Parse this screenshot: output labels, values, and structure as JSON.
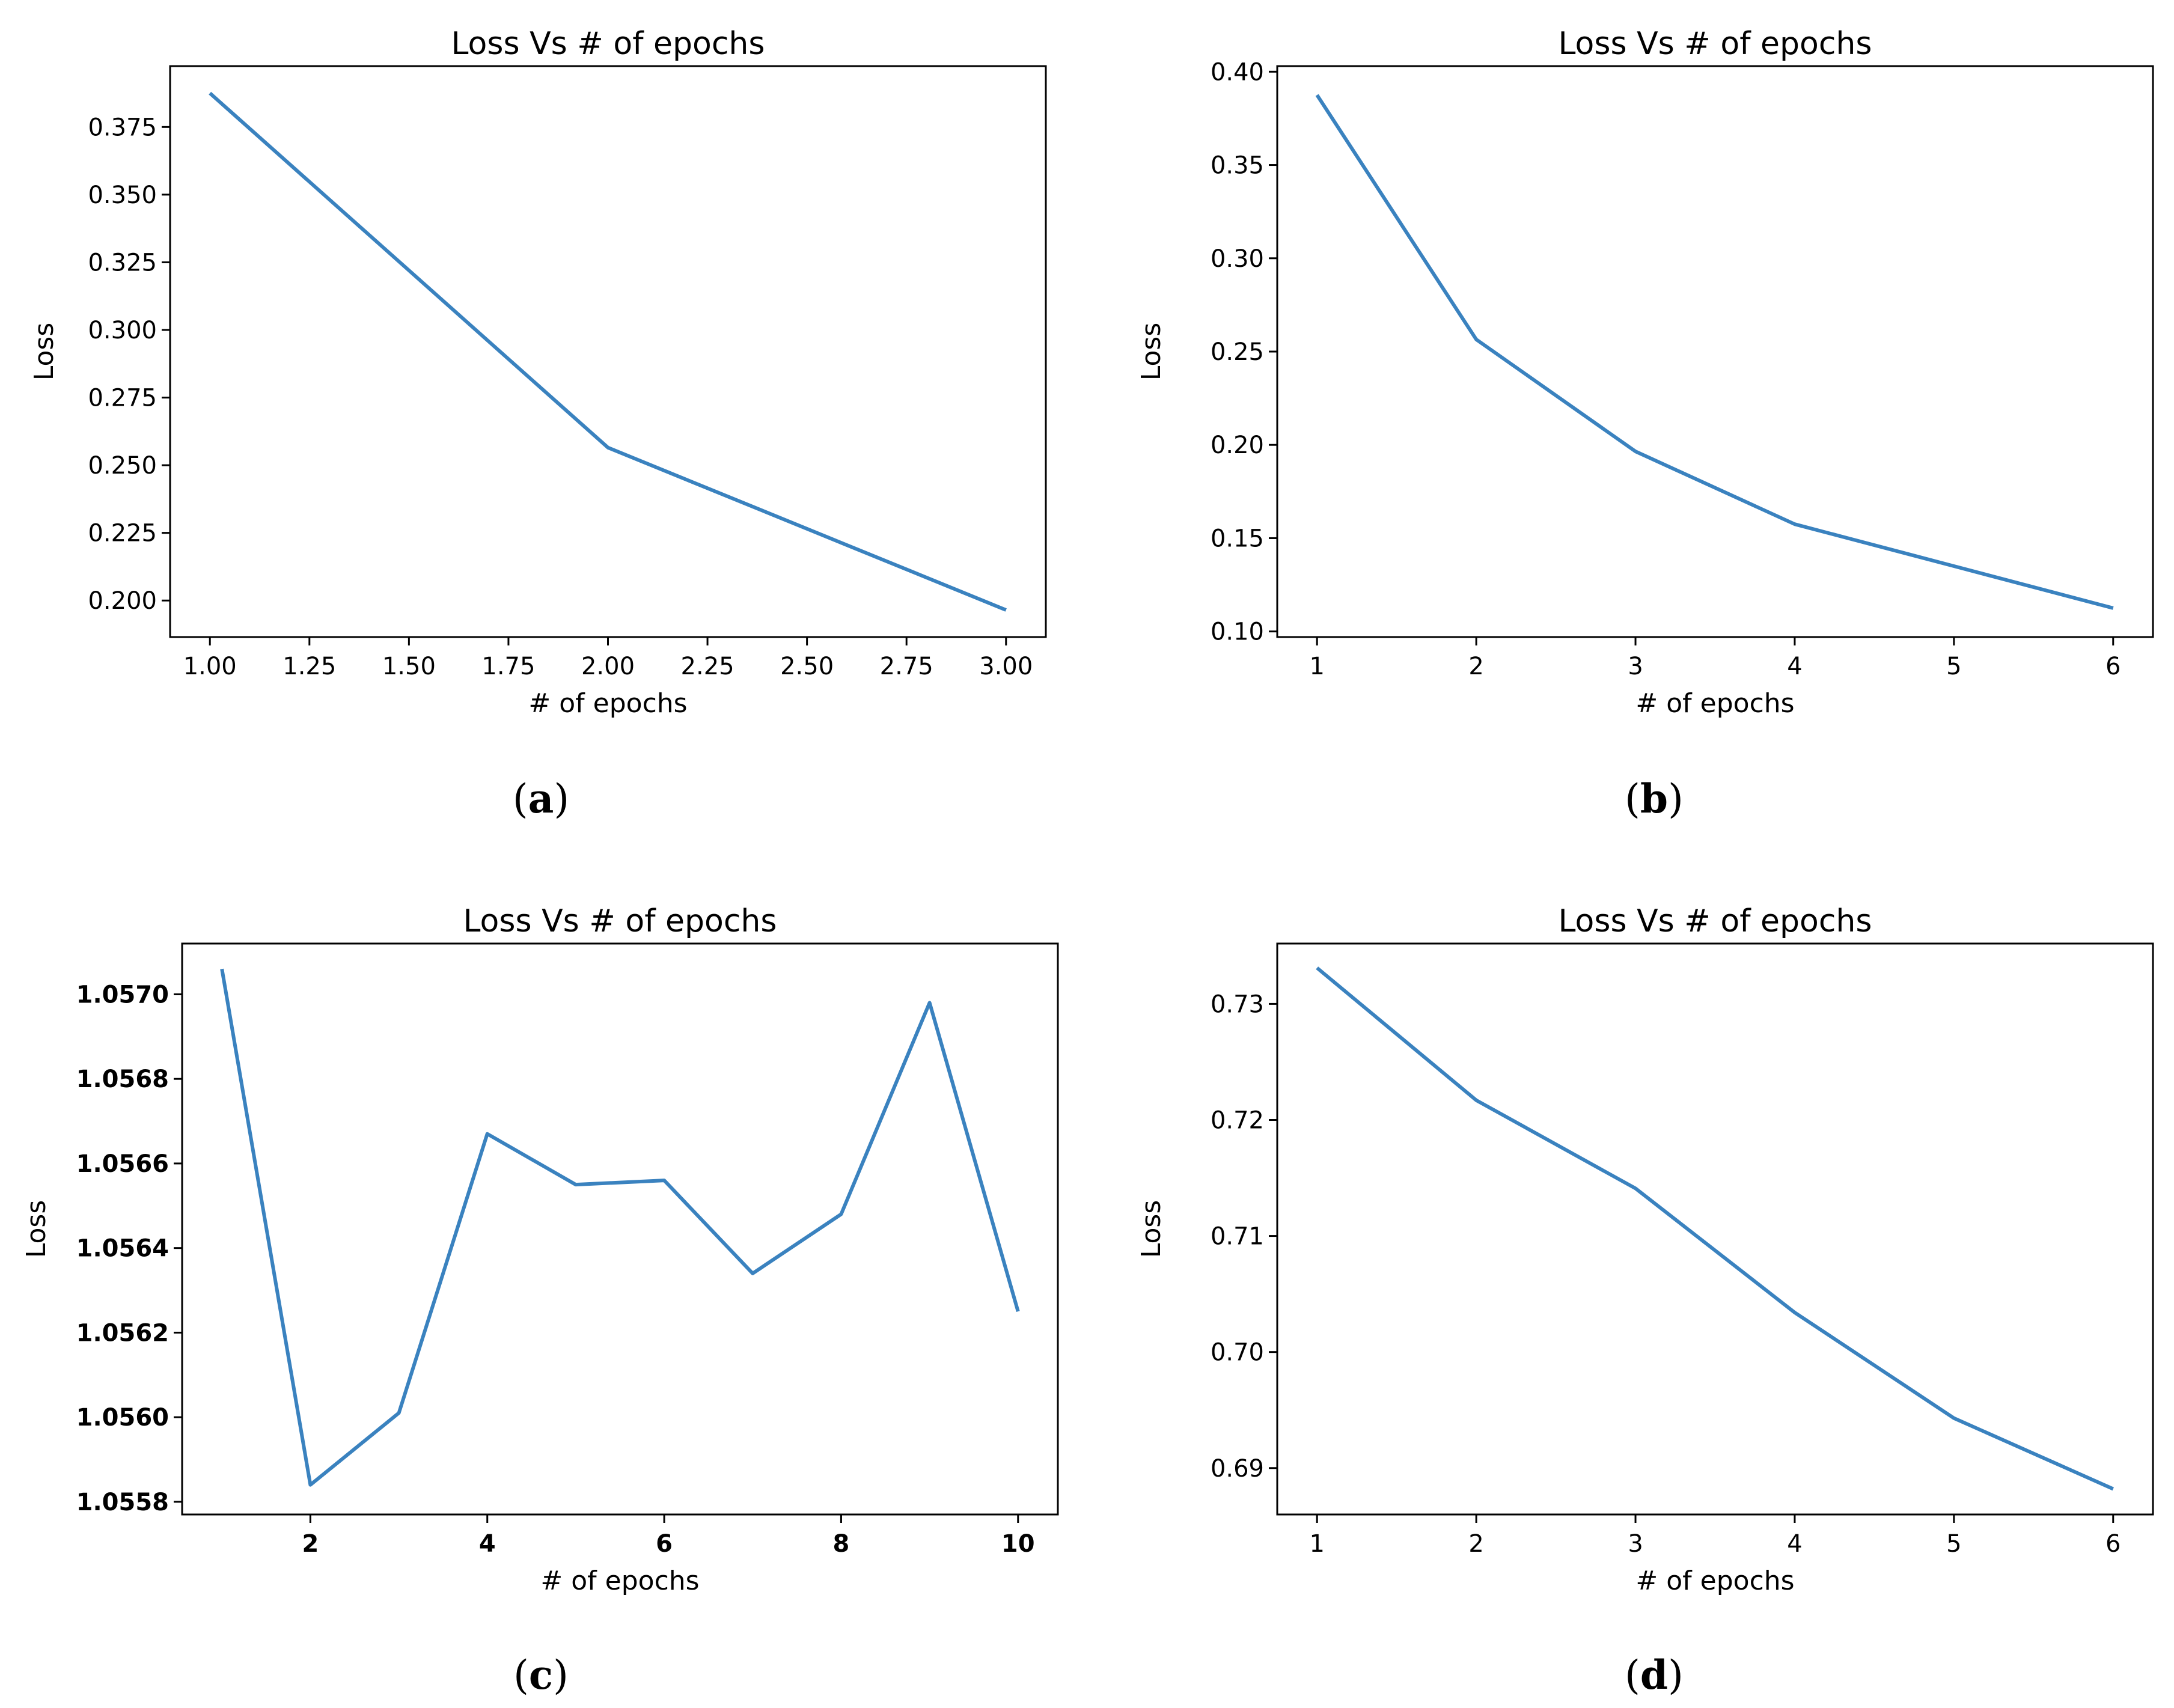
{
  "chart_data": [
    {
      "id": "a",
      "panel_label": "a",
      "type": "line",
      "title": "Loss Vs # of epochs",
      "xlabel": "# of epochs",
      "ylabel": "Loss",
      "xlim": [
        0.9,
        3.1
      ],
      "ylim": [
        0.1865,
        0.3975
      ],
      "xticks": [
        1.0,
        1.25,
        1.5,
        1.75,
        2.0,
        2.25,
        2.5,
        2.75,
        3.0
      ],
      "xtick_labels": [
        "1.00",
        "1.25",
        "1.50",
        "1.75",
        "2.00",
        "2.25",
        "2.50",
        "2.75",
        "3.00"
      ],
      "yticks": [
        0.2,
        0.225,
        0.25,
        0.275,
        0.3,
        0.325,
        0.35,
        0.375
      ],
      "ytick_labels": [
        "0.200",
        "0.225",
        "0.250",
        "0.275",
        "0.300",
        "0.325",
        "0.350",
        "0.375"
      ],
      "tick_bold": false,
      "series": [
        {
          "name": "loss",
          "color": "#3a82bf",
          "x": [
            1,
            2,
            3
          ],
          "y": [
            0.3875,
            0.2565,
            0.1965
          ]
        }
      ]
    },
    {
      "id": "b",
      "panel_label": "b",
      "type": "line",
      "title": "Loss Vs # of epochs",
      "xlabel": "# of epochs",
      "ylabel": "Loss",
      "xlim": [
        0.75,
        6.25
      ],
      "ylim": [
        0.097,
        0.403
      ],
      "xticks": [
        1,
        2,
        3,
        4,
        5,
        6
      ],
      "xtick_labels": [
        "1",
        "2",
        "3",
        "4",
        "5",
        "6"
      ],
      "yticks": [
        0.1,
        0.15,
        0.2,
        0.25,
        0.3,
        0.35,
        0.4
      ],
      "ytick_labels": [
        "0.10",
        "0.15",
        "0.20",
        "0.25",
        "0.30",
        "0.35",
        "0.40"
      ],
      "tick_bold": false,
      "series": [
        {
          "name": "loss",
          "color": "#3a82bf",
          "x": [
            1,
            2,
            3,
            4,
            5,
            6
          ],
          "y": [
            0.3875,
            0.2565,
            0.1965,
            0.1575,
            0.135,
            0.1125
          ]
        }
      ]
    },
    {
      "id": "c",
      "panel_label": "c",
      "type": "line",
      "title": "Loss Vs # of epochs",
      "xlabel": "# of epochs",
      "ylabel": "Loss",
      "xlim": [
        0.55,
        10.45
      ],
      "ylim": [
        1.05577,
        1.05712
      ],
      "xticks": [
        2,
        4,
        6,
        8,
        10
      ],
      "xtick_labels": [
        "2",
        "4",
        "6",
        "8",
        "10"
      ],
      "yticks": [
        1.0558,
        1.056,
        1.0562,
        1.0564,
        1.0566,
        1.0568,
        1.057
      ],
      "ytick_labels": [
        "1.0558",
        "1.0560",
        "1.0562",
        "1.0564",
        "1.0566",
        "1.0568",
        "1.0570"
      ],
      "tick_bold": true,
      "series": [
        {
          "name": "loss",
          "color": "#3a82bf",
          "x": [
            1,
            2,
            3,
            4,
            5,
            6,
            7,
            8,
            9,
            10
          ],
          "y": [
            1.05706,
            1.05584,
            1.05601,
            1.05667,
            1.05655,
            1.05656,
            1.05634,
            1.05648,
            1.05698,
            1.05625
          ]
        }
      ]
    },
    {
      "id": "d",
      "panel_label": "d",
      "type": "line",
      "title": "Loss Vs # of epochs",
      "xlabel": "# of epochs",
      "ylabel": "Loss",
      "xlim": [
        0.75,
        6.25
      ],
      "ylim": [
        0.686,
        0.7352
      ],
      "xticks": [
        1,
        2,
        3,
        4,
        5,
        6
      ],
      "xtick_labels": [
        "1",
        "2",
        "3",
        "4",
        "5",
        "6"
      ],
      "yticks": [
        0.69,
        0.7,
        0.71,
        0.72,
        0.73
      ],
      "ytick_labels": [
        "0.69",
        "0.70",
        "0.71",
        "0.72",
        "0.73"
      ],
      "tick_bold": false,
      "series": [
        {
          "name": "loss",
          "color": "#3a82bf",
          "x": [
            1,
            2,
            3,
            4,
            5,
            6
          ],
          "y": [
            0.7331,
            0.7217,
            0.7141,
            0.7034,
            0.6943,
            0.6882
          ]
        }
      ]
    }
  ]
}
